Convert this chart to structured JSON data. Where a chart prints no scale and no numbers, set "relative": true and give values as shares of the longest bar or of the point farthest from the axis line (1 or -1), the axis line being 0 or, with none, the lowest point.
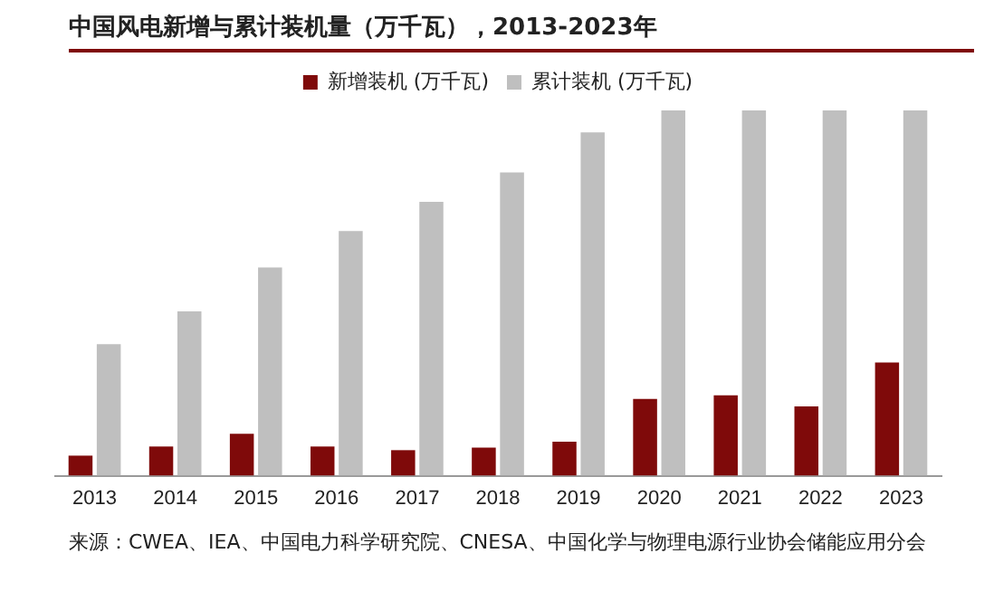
{
  "chart_data": {
    "type": "bar",
    "title": "中国风电新增与累计装机量（万千瓦），2013-2023年",
    "categories": [
      "2013",
      "2014",
      "2015",
      "2016",
      "2017",
      "2018",
      "2019",
      "2020",
      "2021",
      "2022",
      "2023"
    ],
    "series": [
      {
        "name": "新增装机 (万千瓦)",
        "color": "#7f0a0a",
        "values": [
          0.055,
          0.08,
          0.115,
          0.08,
          0.07,
          0.077,
          0.093,
          0.21,
          0.22,
          0.19,
          0.31
        ]
      },
      {
        "name": "累计装机 (万千瓦)",
        "color": "#bfbfbf",
        "values": [
          0.36,
          0.45,
          0.57,
          0.67,
          0.75,
          0.83,
          0.94,
          1,
          1,
          1,
          1
        ]
      }
    ],
    "relative": true,
    "legend": "top",
    "grid": false,
    "annotations": [
      "来源：CWEA、IEA、中国电力科学研究院、CNESA、中国化学与物理电源行业协会储能应用分会"
    ]
  }
}
